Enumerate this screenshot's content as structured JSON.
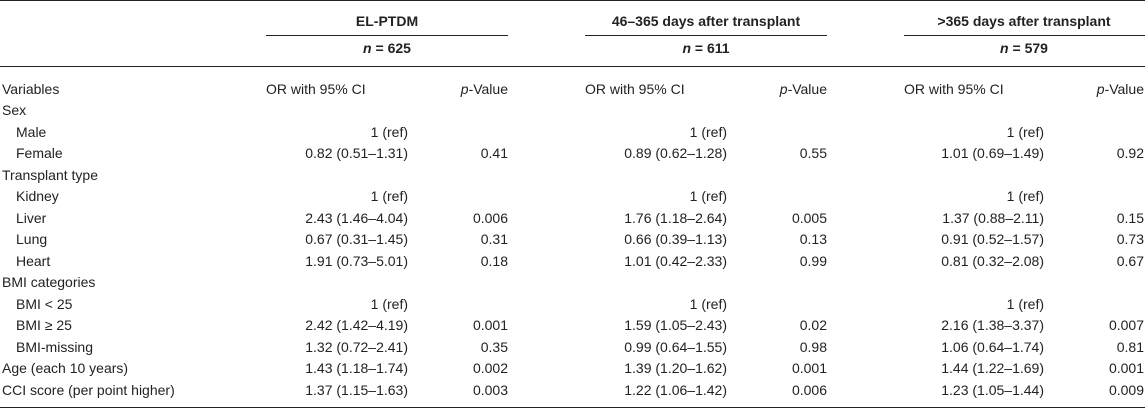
{
  "groups": [
    {
      "title": "EL-PTDM",
      "n_label": "n",
      "n_value": "= 625"
    },
    {
      "title": "46–365 days after transplant",
      "n_label": "n",
      "n_value": "= 611"
    },
    {
      "title": ">365 days after transplant",
      "n_label": "n",
      "n_value": "= 579"
    }
  ],
  "col_headers": {
    "variables": "Variables",
    "or": "OR with 95% CI",
    "p_italic": "p",
    "p_rest": "-Value"
  },
  "rows": [
    {
      "label": "Sex",
      "indent": false,
      "cells": [
        "",
        "",
        "",
        "",
        "",
        ""
      ]
    },
    {
      "label": "Male",
      "indent": true,
      "cells": [
        "1 (ref)",
        "",
        "1 (ref)",
        "",
        "1 (ref)",
        ""
      ]
    },
    {
      "label": "Female",
      "indent": true,
      "cells": [
        "0.82 (0.51–1.31)",
        "0.41",
        "0.89 (0.62–1.28)",
        "0.55",
        "1.01 (0.69–1.49)",
        "0.92"
      ]
    },
    {
      "label": "Transplant type",
      "indent": false,
      "cells": [
        "",
        "",
        "",
        "",
        "",
        ""
      ]
    },
    {
      "label": "Kidney",
      "indent": true,
      "cells": [
        "1 (ref)",
        "",
        "1 (ref)",
        "",
        "1 (ref)",
        ""
      ]
    },
    {
      "label": "Liver",
      "indent": true,
      "cells": [
        "2.43 (1.46–4.04)",
        "0.006",
        "1.76 (1.18–2.64)",
        "0.005",
        "1.37 (0.88–2.11)",
        "0.15"
      ]
    },
    {
      "label": "Lung",
      "indent": true,
      "cells": [
        "0.67 (0.31–1.45)",
        "0.31",
        "0.66 (0.39–1.13)",
        "0.13",
        "0.91 (0.52–1.57)",
        "0.73"
      ]
    },
    {
      "label": "Heart",
      "indent": true,
      "cells": [
        "1.91 (0.73–5.01)",
        "0.18",
        "1.01 (0.42–2.33)",
        "0.99",
        "0.81 (0.32–2.08)",
        "0.67"
      ]
    },
    {
      "label": "BMI categories",
      "indent": false,
      "cells": [
        "",
        "",
        "",
        "",
        "",
        ""
      ]
    },
    {
      "label": "BMI < 25",
      "indent": true,
      "cells": [
        "1 (ref)",
        "",
        "1 (ref)",
        "",
        "1 (ref)",
        ""
      ]
    },
    {
      "label": "BMI ≥ 25",
      "indent": true,
      "cells": [
        "2.42 (1.42–4.19)",
        "0.001",
        "1.59 (1.05–2.43)",
        "0.02",
        "2.16 (1.38–3.37)",
        "0.007"
      ]
    },
    {
      "label": "BMI-missing",
      "indent": true,
      "cells": [
        "1.32 (0.72–2.41)",
        "0.35",
        "0.99 (0.64–1.55)",
        "0.98",
        "1.06 (0.64–1.74)",
        "0.81"
      ]
    },
    {
      "label": "Age (each 10 years)",
      "indent": false,
      "cells": [
        "1.43 (1.18–1.74)",
        "0.002",
        "1.39 (1.20–1.62)",
        "0.001",
        "1.44 (1.22–1.69)",
        "0.001"
      ]
    },
    {
      "label": "CCI score (per point higher)",
      "indent": false,
      "cells": [
        "1.37 (1.15–1.63)",
        "0.003",
        "1.22 (1.06–1.42)",
        "0.006",
        "1.23 (1.05–1.44)",
        "0.009"
      ]
    }
  ]
}
